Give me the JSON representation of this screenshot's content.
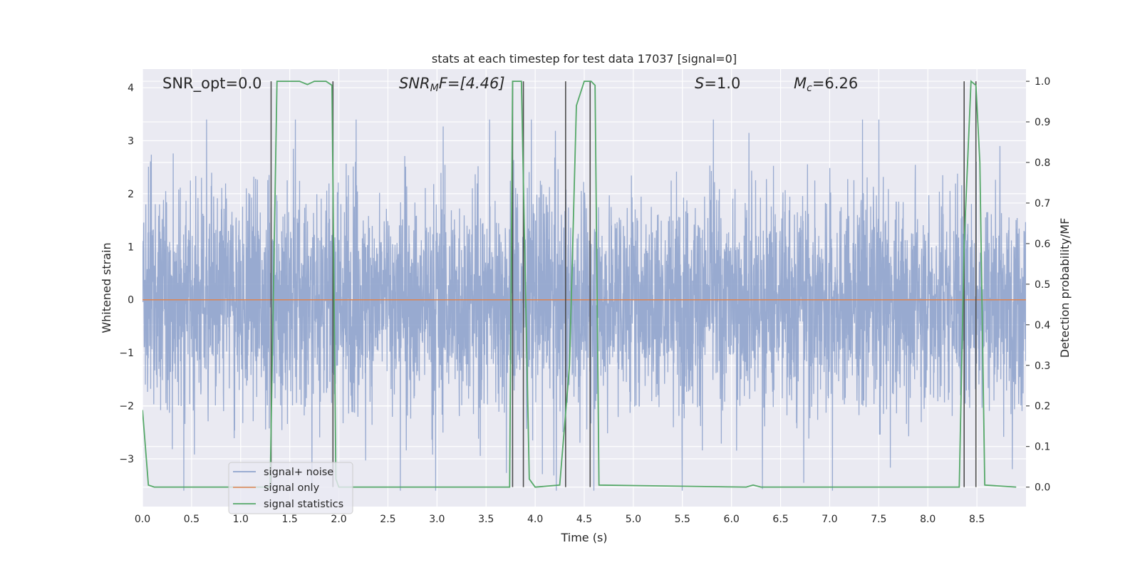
{
  "chart_data": {
    "type": "line",
    "title": "stats at each timestep for test data 17037 [signal=0]",
    "xlabel": "Time (s)",
    "ylabel": "Whitened strain",
    "y2label": "Detection probability/MF",
    "xlim": [
      0.0,
      9.0
    ],
    "ylim": [
      -3.9,
      4.35
    ],
    "y2lim": [
      -0.048,
      1.03
    ],
    "grid": true,
    "legend_position": "lower-left",
    "x_ticks": [
      "0.0",
      "0.5",
      "1.0",
      "1.5",
      "2.0",
      "2.5",
      "3.0",
      "3.5",
      "4.0",
      "4.5",
      "5.0",
      "5.5",
      "6.0",
      "6.5",
      "7.0",
      "7.5",
      "8.0",
      "8.5"
    ],
    "y_ticks": [
      "4",
      "3",
      "2",
      "1",
      "0",
      "−1",
      "−2",
      "−3"
    ],
    "y2_ticks": [
      "1.0",
      "0.9",
      "0.8",
      "0.7",
      "0.6",
      "0.5",
      "0.4",
      "0.3",
      "0.2",
      "0.1",
      "0.0"
    ],
    "annotations": {
      "snr_opt": "SNR_opt=0.0",
      "snr_mf_main": "SNR",
      "snr_mf_sub": "M",
      "snr_mf_rest": "F=[4.46]",
      "s_main": "S",
      "s_rest": "=1.0",
      "mc_main": "M",
      "mc_sub": "c",
      "mc_rest": "=6.26"
    },
    "series": [
      {
        "name": "signal+ noise",
        "color": "#8fa3cc",
        "kind": "noise",
        "typical_envelope": [
          -1.5,
          1.5
        ],
        "extreme_range": [
          -3.6,
          3.4
        ]
      },
      {
        "name": "signal only",
        "color": "#dd8452",
        "x": [
          0.0,
          9.0
        ],
        "y": [
          0.0,
          0.0
        ]
      },
      {
        "name": "signal statistics",
        "color": "#55a868",
        "axis": "right",
        "x": [
          0.0,
          0.06,
          0.12,
          1.3,
          1.37,
          1.45,
          1.6,
          1.68,
          1.75,
          1.87,
          1.93,
          1.97,
          2.0,
          3.68,
          3.74,
          3.77,
          3.82,
          3.86,
          3.94,
          4.0,
          4.25,
          4.35,
          4.42,
          4.5,
          4.57,
          4.61,
          4.65,
          6.15,
          6.22,
          6.3,
          8.32,
          8.37,
          8.44,
          8.49,
          8.53,
          8.58,
          8.9
        ],
        "y": [
          0.19,
          0.005,
          0.0,
          0.0,
          1.0,
          1.0,
          1.0,
          0.992,
          1.0,
          1.0,
          0.99,
          0.02,
          0.0,
          0.0,
          0.0,
          1.0,
          1.0,
          1.0,
          0.02,
          0.0,
          0.005,
          0.3,
          0.94,
          1.0,
          1.0,
          0.99,
          0.005,
          0.0,
          0.005,
          0.0,
          0.0,
          0.6,
          1.0,
          0.99,
          0.8,
          0.005,
          0.0
        ]
      }
    ],
    "vertical_lines": {
      "color": "#4d4d4d",
      "x": [
        1.31,
        1.94,
        3.77,
        3.88,
        4.31,
        4.56,
        8.37,
        8.49
      ]
    }
  }
}
